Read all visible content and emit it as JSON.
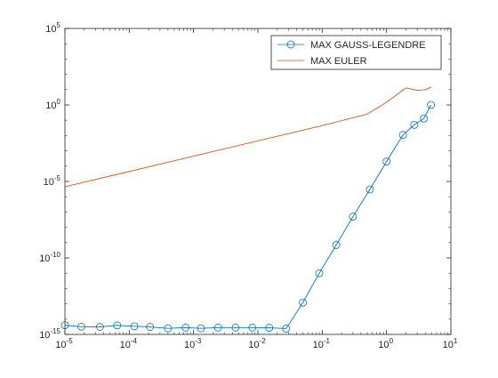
{
  "chart_data": {
    "type": "line",
    "title": "",
    "xlabel": "",
    "ylabel": "",
    "x_scale": "log",
    "y_scale": "log",
    "xlim": [
      1e-05,
      10
    ],
    "ylim": [
      1e-15,
      100000
    ],
    "grid": false,
    "legend_position": "top-right",
    "x_ticks": [
      {
        "value": 1e-05,
        "base": "10",
        "exp": "-5"
      },
      {
        "value": 0.0001,
        "base": "10",
        "exp": "-4"
      },
      {
        "value": 0.001,
        "base": "10",
        "exp": "-3"
      },
      {
        "value": 0.01,
        "base": "10",
        "exp": "-2"
      },
      {
        "value": 0.1,
        "base": "10",
        "exp": "-1"
      },
      {
        "value": 1,
        "base": "10",
        "exp": "0"
      },
      {
        "value": 10,
        "base": "10",
        "exp": "1"
      }
    ],
    "y_ticks": [
      {
        "value": 1e-15,
        "base": "10",
        "exp": "-15"
      },
      {
        "value": 1e-10,
        "base": "10",
        "exp": "-10"
      },
      {
        "value": 1e-05,
        "base": "10",
        "exp": "-5"
      },
      {
        "value": 1,
        "base": "10",
        "exp": "0"
      },
      {
        "value": 100000,
        "base": "10",
        "exp": "5"
      }
    ],
    "series": [
      {
        "name": "MAX GAUSS-LEGENDRE",
        "color": "#0072BD",
        "marker": "circle",
        "x": [
          1e-05,
          1.8e-05,
          3.5e-05,
          6.5e-05,
          0.00012,
          0.00021,
          0.0004,
          0.00075,
          0.0013,
          0.0024,
          0.0045,
          0.0082,
          0.015,
          0.0275,
          0.05,
          0.09,
          0.165,
          0.3,
          0.55,
          1.0,
          1.8,
          2.7,
          3.8,
          4.9
        ],
        "y": [
          4e-15,
          3.2e-15,
          3.1e-15,
          3.9e-15,
          3.4e-15,
          3.1e-15,
          2.5e-15,
          2.8e-15,
          2.5e-15,
          2.8e-15,
          2.8e-15,
          2.8e-15,
          2.7e-15,
          2.4e-15,
          1.2e-13,
          1e-11,
          7e-10,
          5e-08,
          3e-06,
          0.0002,
          0.011,
          0.05,
          0.13,
          1.0
        ]
      },
      {
        "name": "MAX EULER",
        "color": "#D95319",
        "marker": "none",
        "x": [
          1e-05,
          0.1,
          0.5,
          1.0,
          2.0,
          3.0,
          4.0,
          5.0
        ],
        "y": [
          4.5e-06,
          0.045,
          0.25,
          1.5,
          13.0,
          9.0,
          10.0,
          15.0
        ]
      }
    ]
  }
}
